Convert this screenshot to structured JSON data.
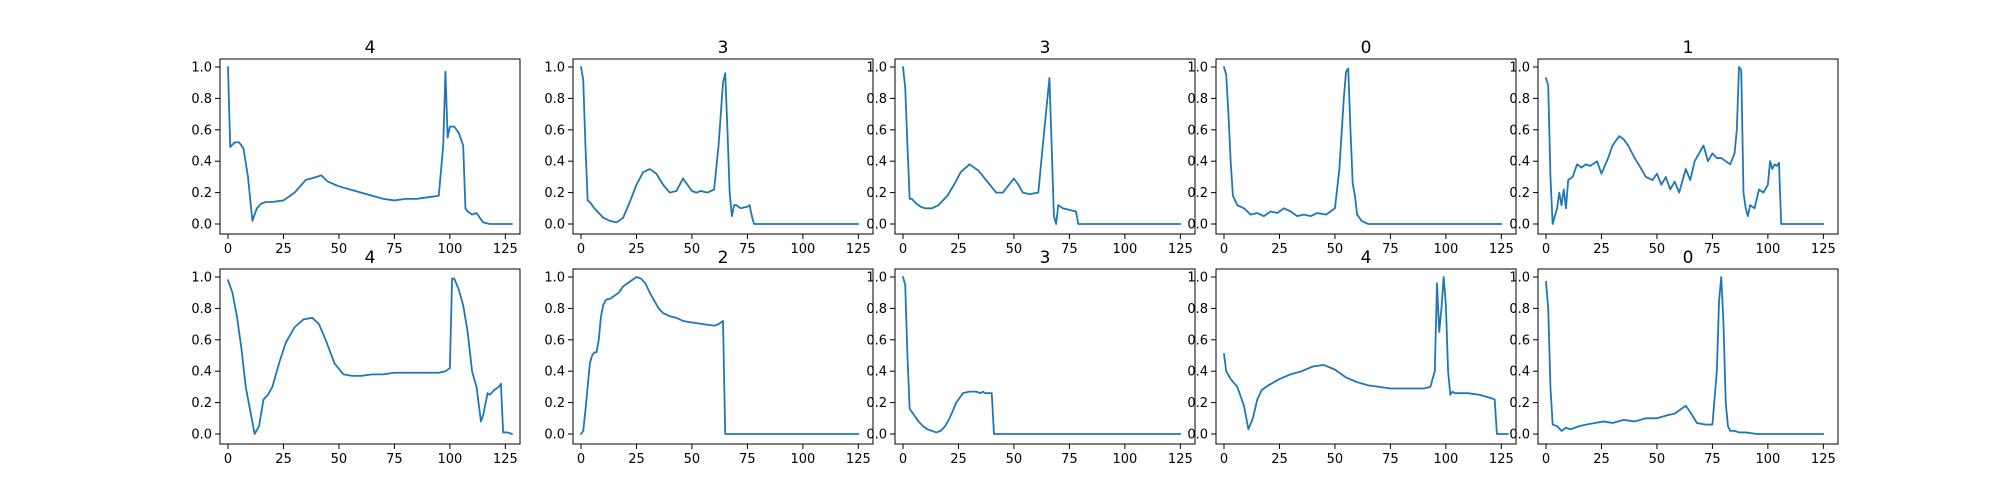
{
  "colors": {
    "series": "#1f77b4",
    "frame": "#000000",
    "background": "#ffffff"
  },
  "chart_data": [
    {
      "type": "line",
      "title": "4",
      "xlim": [
        0,
        128
      ],
      "ylim": [
        0,
        1
      ],
      "xticks": [
        0,
        25,
        50,
        75,
        100,
        125
      ],
      "yticks": [
        0.0,
        0.2,
        0.4,
        0.6,
        0.8,
        1.0
      ],
      "grid": false,
      "series": [
        {
          "x": [
            0,
            1,
            3,
            5,
            7,
            9,
            11,
            13,
            15,
            17,
            20,
            25,
            30,
            35,
            40,
            42,
            45,
            50,
            55,
            60,
            65,
            70,
            75,
            80,
            85,
            90,
            95,
            97,
            98,
            99,
            100,
            102,
            104,
            106,
            107,
            108,
            110,
            112,
            115,
            118,
            120,
            125,
            128
          ],
          "values": [
            1.0,
            0.49,
            0.52,
            0.52,
            0.48,
            0.3,
            0.02,
            0.1,
            0.13,
            0.14,
            0.14,
            0.15,
            0.2,
            0.28,
            0.3,
            0.31,
            0.27,
            0.24,
            0.22,
            0.2,
            0.18,
            0.16,
            0.15,
            0.16,
            0.16,
            0.17,
            0.18,
            0.5,
            0.97,
            0.55,
            0.62,
            0.62,
            0.58,
            0.5,
            0.1,
            0.08,
            0.06,
            0.07,
            0.01,
            0.0,
            0.0,
            0.0,
            0.0
          ]
        }
      ]
    },
    {
      "type": "line",
      "title": "3",
      "xlim": [
        0,
        128
      ],
      "ylim": [
        0,
        1
      ],
      "xticks": [
        0,
        25,
        50,
        75,
        100,
        125
      ],
      "yticks": [
        0.0,
        0.2,
        0.4,
        0.6,
        0.8,
        1.0
      ],
      "grid": false,
      "series": [
        {
          "x": [
            0,
            1,
            2,
            3,
            4,
            6,
            8,
            10,
            13,
            16,
            19,
            22,
            25,
            28,
            31,
            34,
            37,
            40,
            43,
            46,
            50,
            52,
            54,
            57,
            60,
            62,
            64,
            65,
            66,
            67,
            68,
            69,
            70,
            72,
            75,
            76,
            77,
            78,
            80,
            90,
            100,
            110,
            120,
            125
          ],
          "values": [
            1.0,
            0.92,
            0.5,
            0.15,
            0.14,
            0.1,
            0.07,
            0.04,
            0.02,
            0.01,
            0.04,
            0.14,
            0.25,
            0.33,
            0.35,
            0.32,
            0.25,
            0.2,
            0.21,
            0.29,
            0.21,
            0.2,
            0.21,
            0.2,
            0.22,
            0.5,
            0.9,
            0.96,
            0.6,
            0.2,
            0.05,
            0.12,
            0.12,
            0.1,
            0.11,
            0.12,
            0.05,
            0.0,
            0.0,
            0.0,
            0.0,
            0.0,
            0.0,
            0.0
          ]
        }
      ]
    },
    {
      "type": "line",
      "title": "3",
      "xlim": [
        0,
        128
      ],
      "ylim": [
        0,
        1
      ],
      "xticks": [
        0,
        25,
        50,
        75,
        100,
        125
      ],
      "yticks": [
        0.0,
        0.2,
        0.4,
        0.6,
        0.8,
        1.0
      ],
      "grid": false,
      "series": [
        {
          "x": [
            0,
            1,
            2,
            3,
            4,
            6,
            8,
            10,
            13,
            16,
            20,
            23,
            26,
            30,
            34,
            38,
            42,
            45,
            50,
            52,
            54,
            57,
            61,
            63,
            66,
            67,
            68,
            69,
            70,
            72,
            75,
            78,
            79,
            80,
            90,
            100,
            110,
            120,
            125
          ],
          "values": [
            1.0,
            0.87,
            0.5,
            0.16,
            0.16,
            0.13,
            0.11,
            0.1,
            0.1,
            0.12,
            0.18,
            0.25,
            0.33,
            0.38,
            0.34,
            0.27,
            0.2,
            0.2,
            0.29,
            0.25,
            0.2,
            0.19,
            0.2,
            0.5,
            0.93,
            0.5,
            0.05,
            0.0,
            0.12,
            0.1,
            0.09,
            0.08,
            0.0,
            0.0,
            0.0,
            0.0,
            0.0,
            0.0,
            0.0
          ]
        }
      ]
    },
    {
      "type": "line",
      "title": "0",
      "xlim": [
        0,
        128
      ],
      "ylim": [
        0,
        1
      ],
      "xticks": [
        0,
        25,
        50,
        75,
        100,
        125
      ],
      "yticks": [
        0.0,
        0.2,
        0.4,
        0.6,
        0.8,
        1.0
      ],
      "grid": false,
      "series": [
        {
          "x": [
            0,
            1,
            2,
            3,
            4,
            6,
            9,
            12,
            15,
            18,
            21,
            24,
            27,
            30,
            33,
            36,
            39,
            42,
            46,
            50,
            52,
            54,
            55,
            56,
            57,
            58,
            59,
            60,
            62,
            65,
            70,
            80,
            90,
            100,
            110,
            120,
            125
          ],
          "values": [
            1.0,
            0.95,
            0.7,
            0.4,
            0.18,
            0.12,
            0.1,
            0.06,
            0.07,
            0.05,
            0.08,
            0.07,
            0.1,
            0.08,
            0.05,
            0.06,
            0.05,
            0.07,
            0.06,
            0.1,
            0.35,
            0.8,
            0.97,
            0.99,
            0.6,
            0.26,
            0.18,
            0.06,
            0.02,
            0.0,
            0.0,
            0.0,
            0.0,
            0.0,
            0.0,
            0.0,
            0.0
          ]
        }
      ]
    },
    {
      "type": "line",
      "title": "1",
      "xlim": [
        0,
        128
      ],
      "ylim": [
        0,
        1
      ],
      "xticks": [
        0,
        25,
        50,
        75,
        100,
        125
      ],
      "yticks": [
        0.0,
        0.2,
        0.4,
        0.6,
        0.8,
        1.0
      ],
      "grid": false,
      "series": [
        {
          "x": [
            0,
            1,
            2,
            3,
            4,
            5,
            6,
            7,
            8,
            9,
            10,
            12,
            14,
            16,
            18,
            20,
            23,
            25,
            28,
            30,
            33,
            35,
            37,
            40,
            43,
            45,
            48,
            50,
            52,
            54,
            56,
            58,
            60,
            63,
            65,
            67,
            69,
            71,
            73,
            75,
            77,
            79,
            81,
            83,
            85,
            86,
            87,
            88,
            89,
            90,
            91,
            92,
            94,
            96,
            98,
            100,
            101,
            102,
            103,
            104,
            105,
            106,
            108,
            110,
            115,
            120,
            125
          ],
          "values": [
            0.93,
            0.88,
            0.3,
            0.0,
            0.05,
            0.1,
            0.2,
            0.12,
            0.22,
            0.1,
            0.28,
            0.3,
            0.38,
            0.36,
            0.38,
            0.37,
            0.4,
            0.32,
            0.42,
            0.5,
            0.56,
            0.54,
            0.5,
            0.42,
            0.35,
            0.3,
            0.28,
            0.32,
            0.25,
            0.3,
            0.22,
            0.27,
            0.2,
            0.35,
            0.28,
            0.4,
            0.45,
            0.5,
            0.4,
            0.45,
            0.42,
            0.42,
            0.4,
            0.38,
            0.45,
            0.6,
            1.0,
            0.98,
            0.2,
            0.1,
            0.05,
            0.12,
            0.1,
            0.22,
            0.2,
            0.25,
            0.4,
            0.35,
            0.38,
            0.37,
            0.39,
            0.0,
            0.0,
            0.0,
            0.0,
            0.0,
            0.0
          ]
        }
      ]
    },
    {
      "type": "line",
      "title": "4",
      "xlim": [
        0,
        128
      ],
      "ylim": [
        0,
        1
      ],
      "xticks": [
        0,
        25,
        50,
        75,
        100,
        125
      ],
      "yticks": [
        0.0,
        0.2,
        0.4,
        0.6,
        0.8,
        1.0
      ],
      "grid": false,
      "series": [
        {
          "x": [
            0,
            2,
            4,
            6,
            8,
            10,
            12,
            14,
            16,
            18,
            20,
            23,
            26,
            30,
            34,
            38,
            41,
            44,
            48,
            52,
            56,
            60,
            65,
            70,
            75,
            80,
            85,
            90,
            95,
            98,
            100,
            101,
            102,
            104,
            106,
            108,
            110,
            112,
            114,
            115,
            117,
            118,
            120,
            122,
            123,
            124,
            125,
            126,
            128
          ],
          "values": [
            0.98,
            0.9,
            0.75,
            0.55,
            0.3,
            0.15,
            0.0,
            0.05,
            0.22,
            0.25,
            0.3,
            0.45,
            0.58,
            0.68,
            0.73,
            0.74,
            0.7,
            0.6,
            0.45,
            0.38,
            0.37,
            0.37,
            0.38,
            0.38,
            0.39,
            0.39,
            0.39,
            0.39,
            0.39,
            0.4,
            0.42,
            0.99,
            0.99,
            0.92,
            0.82,
            0.65,
            0.4,
            0.3,
            0.08,
            0.12,
            0.26,
            0.25,
            0.28,
            0.3,
            0.32,
            0.01,
            0.01,
            0.01,
            0.0
          ]
        }
      ]
    },
    {
      "type": "line",
      "title": "2",
      "xlim": [
        0,
        128
      ],
      "ylim": [
        0,
        1
      ],
      "xticks": [
        0,
        25,
        50,
        75,
        100,
        125
      ],
      "yticks": [
        0.0,
        0.2,
        0.4,
        0.6,
        0.8,
        1.0
      ],
      "grid": false,
      "series": [
        {
          "x": [
            0,
            1,
            2,
            3,
            4,
            5,
            6,
            7,
            8,
            9,
            10,
            11,
            12,
            13,
            14,
            15,
            17,
            19,
            21,
            23,
            25,
            27,
            29,
            31,
            33,
            35,
            37,
            40,
            43,
            46,
            50,
            55,
            60,
            62,
            64,
            65,
            66,
            70,
            80,
            100,
            125
          ],
          "values": [
            0.0,
            0.02,
            0.15,
            0.3,
            0.45,
            0.5,
            0.52,
            0.52,
            0.6,
            0.75,
            0.82,
            0.85,
            0.86,
            0.86,
            0.87,
            0.88,
            0.9,
            0.94,
            0.96,
            0.98,
            1.0,
            0.99,
            0.96,
            0.9,
            0.85,
            0.8,
            0.77,
            0.75,
            0.74,
            0.72,
            0.71,
            0.7,
            0.69,
            0.7,
            0.72,
            0.0,
            0.0,
            0.0,
            0.0,
            0.0,
            0.0
          ]
        }
      ]
    },
    {
      "type": "line",
      "title": "3",
      "xlim": [
        0,
        128
      ],
      "ylim": [
        0,
        1
      ],
      "xticks": [
        0,
        25,
        50,
        75,
        100,
        125
      ],
      "yticks": [
        0.0,
        0.2,
        0.4,
        0.6,
        0.8,
        1.0
      ],
      "grid": false,
      "series": [
        {
          "x": [
            0,
            1,
            2,
            3,
            4,
            5,
            7,
            9,
            11,
            13,
            15,
            17,
            19,
            21,
            24,
            27,
            30,
            33,
            35,
            36,
            37,
            38,
            40,
            41,
            42,
            50,
            75,
            100,
            125
          ],
          "values": [
            1.0,
            0.95,
            0.5,
            0.16,
            0.14,
            0.12,
            0.08,
            0.05,
            0.03,
            0.02,
            0.01,
            0.02,
            0.05,
            0.1,
            0.2,
            0.26,
            0.27,
            0.27,
            0.26,
            0.27,
            0.26,
            0.26,
            0.26,
            0.0,
            0.0,
            0.0,
            0.0,
            0.0,
            0.0
          ]
        }
      ]
    },
    {
      "type": "line",
      "title": "4",
      "xlim": [
        0,
        128
      ],
      "ylim": [
        0,
        1
      ],
      "xticks": [
        0,
        25,
        50,
        75,
        100,
        125
      ],
      "yticks": [
        0.0,
        0.2,
        0.4,
        0.6,
        0.8,
        1.0
      ],
      "grid": false,
      "series": [
        {
          "x": [
            0,
            1,
            3,
            6,
            9,
            11,
            13,
            15,
            17,
            20,
            25,
            30,
            35,
            40,
            45,
            50,
            55,
            60,
            65,
            70,
            75,
            80,
            85,
            90,
            93,
            95,
            96,
            97,
            98,
            99,
            100,
            101,
            102,
            103,
            104,
            105,
            110,
            115,
            120,
            122,
            123,
            124,
            125,
            128
          ],
          "values": [
            0.51,
            0.4,
            0.35,
            0.3,
            0.18,
            0.03,
            0.1,
            0.22,
            0.28,
            0.31,
            0.35,
            0.38,
            0.4,
            0.43,
            0.44,
            0.41,
            0.36,
            0.33,
            0.31,
            0.3,
            0.29,
            0.29,
            0.29,
            0.29,
            0.3,
            0.4,
            0.96,
            0.65,
            0.8,
            1.0,
            0.82,
            0.4,
            0.25,
            0.27,
            0.26,
            0.26,
            0.26,
            0.25,
            0.23,
            0.22,
            0.0,
            0.0,
            0.0,
            0.0
          ]
        }
      ]
    },
    {
      "type": "line",
      "title": "0",
      "xlim": [
        0,
        128
      ],
      "ylim": [
        0,
        1
      ],
      "xticks": [
        0,
        25,
        50,
        75,
        100,
        125
      ],
      "yticks": [
        0.0,
        0.2,
        0.4,
        0.6,
        0.8,
        1.0
      ],
      "grid": false,
      "series": [
        {
          "x": [
            0,
            1,
            2,
            3,
            5,
            7,
            9,
            11,
            13,
            15,
            18,
            22,
            26,
            30,
            35,
            40,
            45,
            50,
            55,
            58,
            61,
            63,
            65,
            68,
            72,
            75,
            77,
            78,
            79,
            80,
            81,
            82,
            83,
            85,
            87,
            90,
            95,
            100,
            110,
            120,
            125
          ],
          "values": [
            0.97,
            0.8,
            0.3,
            0.06,
            0.05,
            0.02,
            0.04,
            0.03,
            0.04,
            0.05,
            0.06,
            0.07,
            0.08,
            0.07,
            0.09,
            0.08,
            0.1,
            0.1,
            0.12,
            0.13,
            0.16,
            0.18,
            0.14,
            0.07,
            0.06,
            0.06,
            0.4,
            0.85,
            1.0,
            0.7,
            0.2,
            0.05,
            0.02,
            0.02,
            0.01,
            0.01,
            0.0,
            0.0,
            0.0,
            0.0,
            0.0
          ]
        }
      ]
    }
  ]
}
